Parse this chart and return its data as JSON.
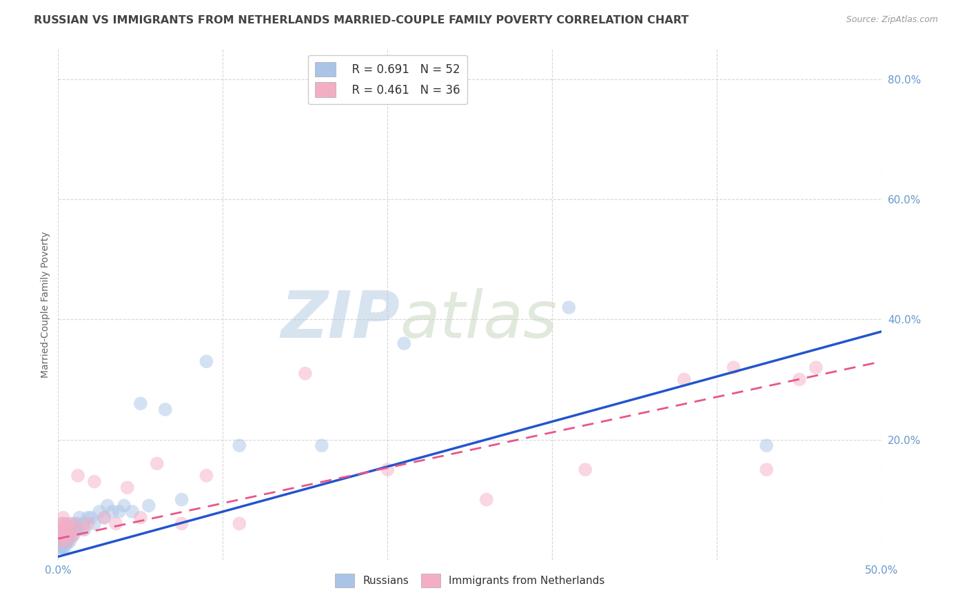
{
  "title": "RUSSIAN VS IMMIGRANTS FROM NETHERLANDS MARRIED-COUPLE FAMILY POVERTY CORRELATION CHART",
  "source": "Source: ZipAtlas.com",
  "ylabel": "Married-Couple Family Poverty",
  "xlim": [
    0.0,
    0.5
  ],
  "ylim": [
    0.0,
    0.85
  ],
  "xticks": [
    0.0,
    0.1,
    0.2,
    0.3,
    0.4,
    0.5
  ],
  "xticklabels_show": [
    "0.0%",
    "",
    "",
    "",
    "",
    "50.0%"
  ],
  "yticks": [
    0.0,
    0.2,
    0.4,
    0.6,
    0.8
  ],
  "yticklabels": [
    "",
    "20.0%",
    "40.0%",
    "60.0%",
    "80.0%"
  ],
  "background_color": "#ffffff",
  "grid_color": "#cccccc",
  "watermark_zip": "ZIP",
  "watermark_atlas": "atlas",
  "legend_r1_label": "R = 0.691",
  "legend_r1_n": "N = 52",
  "legend_r2_label": "R = 0.461",
  "legend_r2_n": "N = 36",
  "legend_label1": "Russians",
  "legend_label2": "Immigrants from Netherlands",
  "blue_color": "#aac4e8",
  "pink_color": "#f4aec4",
  "blue_line_color": "#2255cc",
  "pink_line_color": "#e8558a",
  "title_color": "#444444",
  "axis_tick_color": "#6699cc",
  "scatter_size": 200,
  "scatter_alpha": 0.5,
  "title_fontsize": 11.5,
  "source_fontsize": 9,
  "axis_fontsize": 11,
  "label_fontsize": 10,
  "watermark_zip_fontsize": 68,
  "watermark_atlas_fontsize": 68,
  "watermark_zip_color": "#c8d8ee",
  "watermark_atlas_color": "#c8d8ee",
  "russians_x": [
    0.001,
    0.001,
    0.001,
    0.002,
    0.002,
    0.002,
    0.002,
    0.003,
    0.003,
    0.003,
    0.003,
    0.003,
    0.004,
    0.004,
    0.004,
    0.004,
    0.005,
    0.005,
    0.005,
    0.006,
    0.006,
    0.007,
    0.007,
    0.008,
    0.008,
    0.009,
    0.01,
    0.011,
    0.012,
    0.013,
    0.015,
    0.016,
    0.018,
    0.02,
    0.022,
    0.025,
    0.028,
    0.03,
    0.033,
    0.037,
    0.04,
    0.045,
    0.05,
    0.055,
    0.065,
    0.075,
    0.09,
    0.11,
    0.16,
    0.21,
    0.31,
    0.43
  ],
  "russians_y": [
    0.02,
    0.03,
    0.04,
    0.02,
    0.03,
    0.04,
    0.05,
    0.02,
    0.03,
    0.04,
    0.05,
    0.06,
    0.02,
    0.03,
    0.04,
    0.05,
    0.03,
    0.04,
    0.05,
    0.03,
    0.04,
    0.03,
    0.05,
    0.04,
    0.06,
    0.04,
    0.05,
    0.06,
    0.05,
    0.07,
    0.06,
    0.05,
    0.07,
    0.07,
    0.06,
    0.08,
    0.07,
    0.09,
    0.08,
    0.08,
    0.09,
    0.08,
    0.26,
    0.09,
    0.25,
    0.1,
    0.33,
    0.19,
    0.19,
    0.36,
    0.42,
    0.19
  ],
  "netherlands_x": [
    0.001,
    0.001,
    0.002,
    0.002,
    0.003,
    0.003,
    0.004,
    0.004,
    0.005,
    0.005,
    0.006,
    0.007,
    0.008,
    0.009,
    0.01,
    0.012,
    0.015,
    0.018,
    0.022,
    0.028,
    0.035,
    0.042,
    0.05,
    0.06,
    0.075,
    0.09,
    0.11,
    0.15,
    0.2,
    0.26,
    0.32,
    0.38,
    0.41,
    0.43,
    0.45,
    0.46
  ],
  "netherlands_y": [
    0.03,
    0.05,
    0.04,
    0.06,
    0.05,
    0.07,
    0.04,
    0.06,
    0.03,
    0.05,
    0.06,
    0.04,
    0.05,
    0.04,
    0.06,
    0.14,
    0.05,
    0.06,
    0.13,
    0.07,
    0.06,
    0.12,
    0.07,
    0.16,
    0.06,
    0.14,
    0.06,
    0.31,
    0.15,
    0.1,
    0.15,
    0.3,
    0.32,
    0.15,
    0.3,
    0.32
  ],
  "blue_trend_x0": 0.0,
  "blue_trend_y0": 0.005,
  "blue_trend_x1": 0.5,
  "blue_trend_y1": 0.38,
  "pink_trend_x0": 0.0,
  "pink_trend_y0": 0.035,
  "pink_trend_x1": 0.5,
  "pink_trend_y1": 0.33
}
